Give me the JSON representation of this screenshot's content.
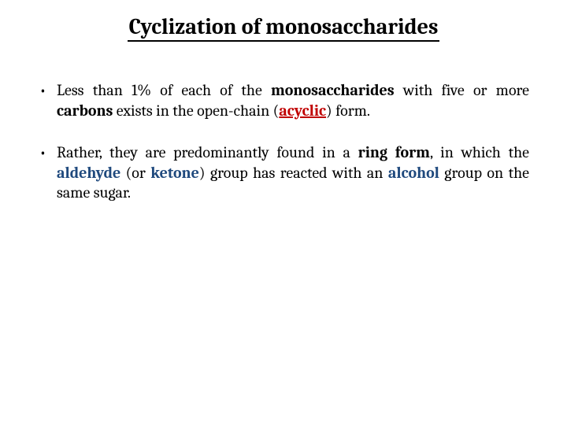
{
  "title": "Cyclization of monosaccharides",
  "colors": {
    "text": "#000000",
    "highlight_red": "#c00000",
    "highlight_blue": "#1f497d",
    "background": "#ffffff"
  },
  "typography": {
    "title_fontsize_pt": 21,
    "body_fontsize_pt": 15,
    "font_family": "Cambria/Georgia serif"
  },
  "bullets": [
    {
      "runs": [
        {
          "text": "Less than 1% of each of the ",
          "style": "plain"
        },
        {
          "text": "monosaccharides",
          "style": "bold"
        },
        {
          "text": " with five or more ",
          "style": "plain"
        },
        {
          "text": "carbons",
          "style": "bold"
        },
        {
          "text": " exists in the open-chain (",
          "style": "plain"
        },
        {
          "text": "acyclic",
          "style": "red-underline-bold"
        },
        {
          "text": ") form.",
          "style": "plain"
        }
      ]
    },
    {
      "runs": [
        {
          "text": "Rather, they are predominantly found in a ",
          "style": "plain"
        },
        {
          "text": "ring form",
          "style": "bold"
        },
        {
          "text": ", in which the ",
          "style": "plain"
        },
        {
          "text": "aldehyde",
          "style": "blue-bold"
        },
        {
          "text": " (or ",
          "style": "plain"
        },
        {
          "text": "ketone",
          "style": "blue-bold"
        },
        {
          "text": ") group has reacted with an ",
          "style": "plain"
        },
        {
          "text": "alcohol",
          "style": "blue-bold"
        },
        {
          "text": " group on the same sugar.",
          "style": "plain"
        }
      ]
    }
  ]
}
